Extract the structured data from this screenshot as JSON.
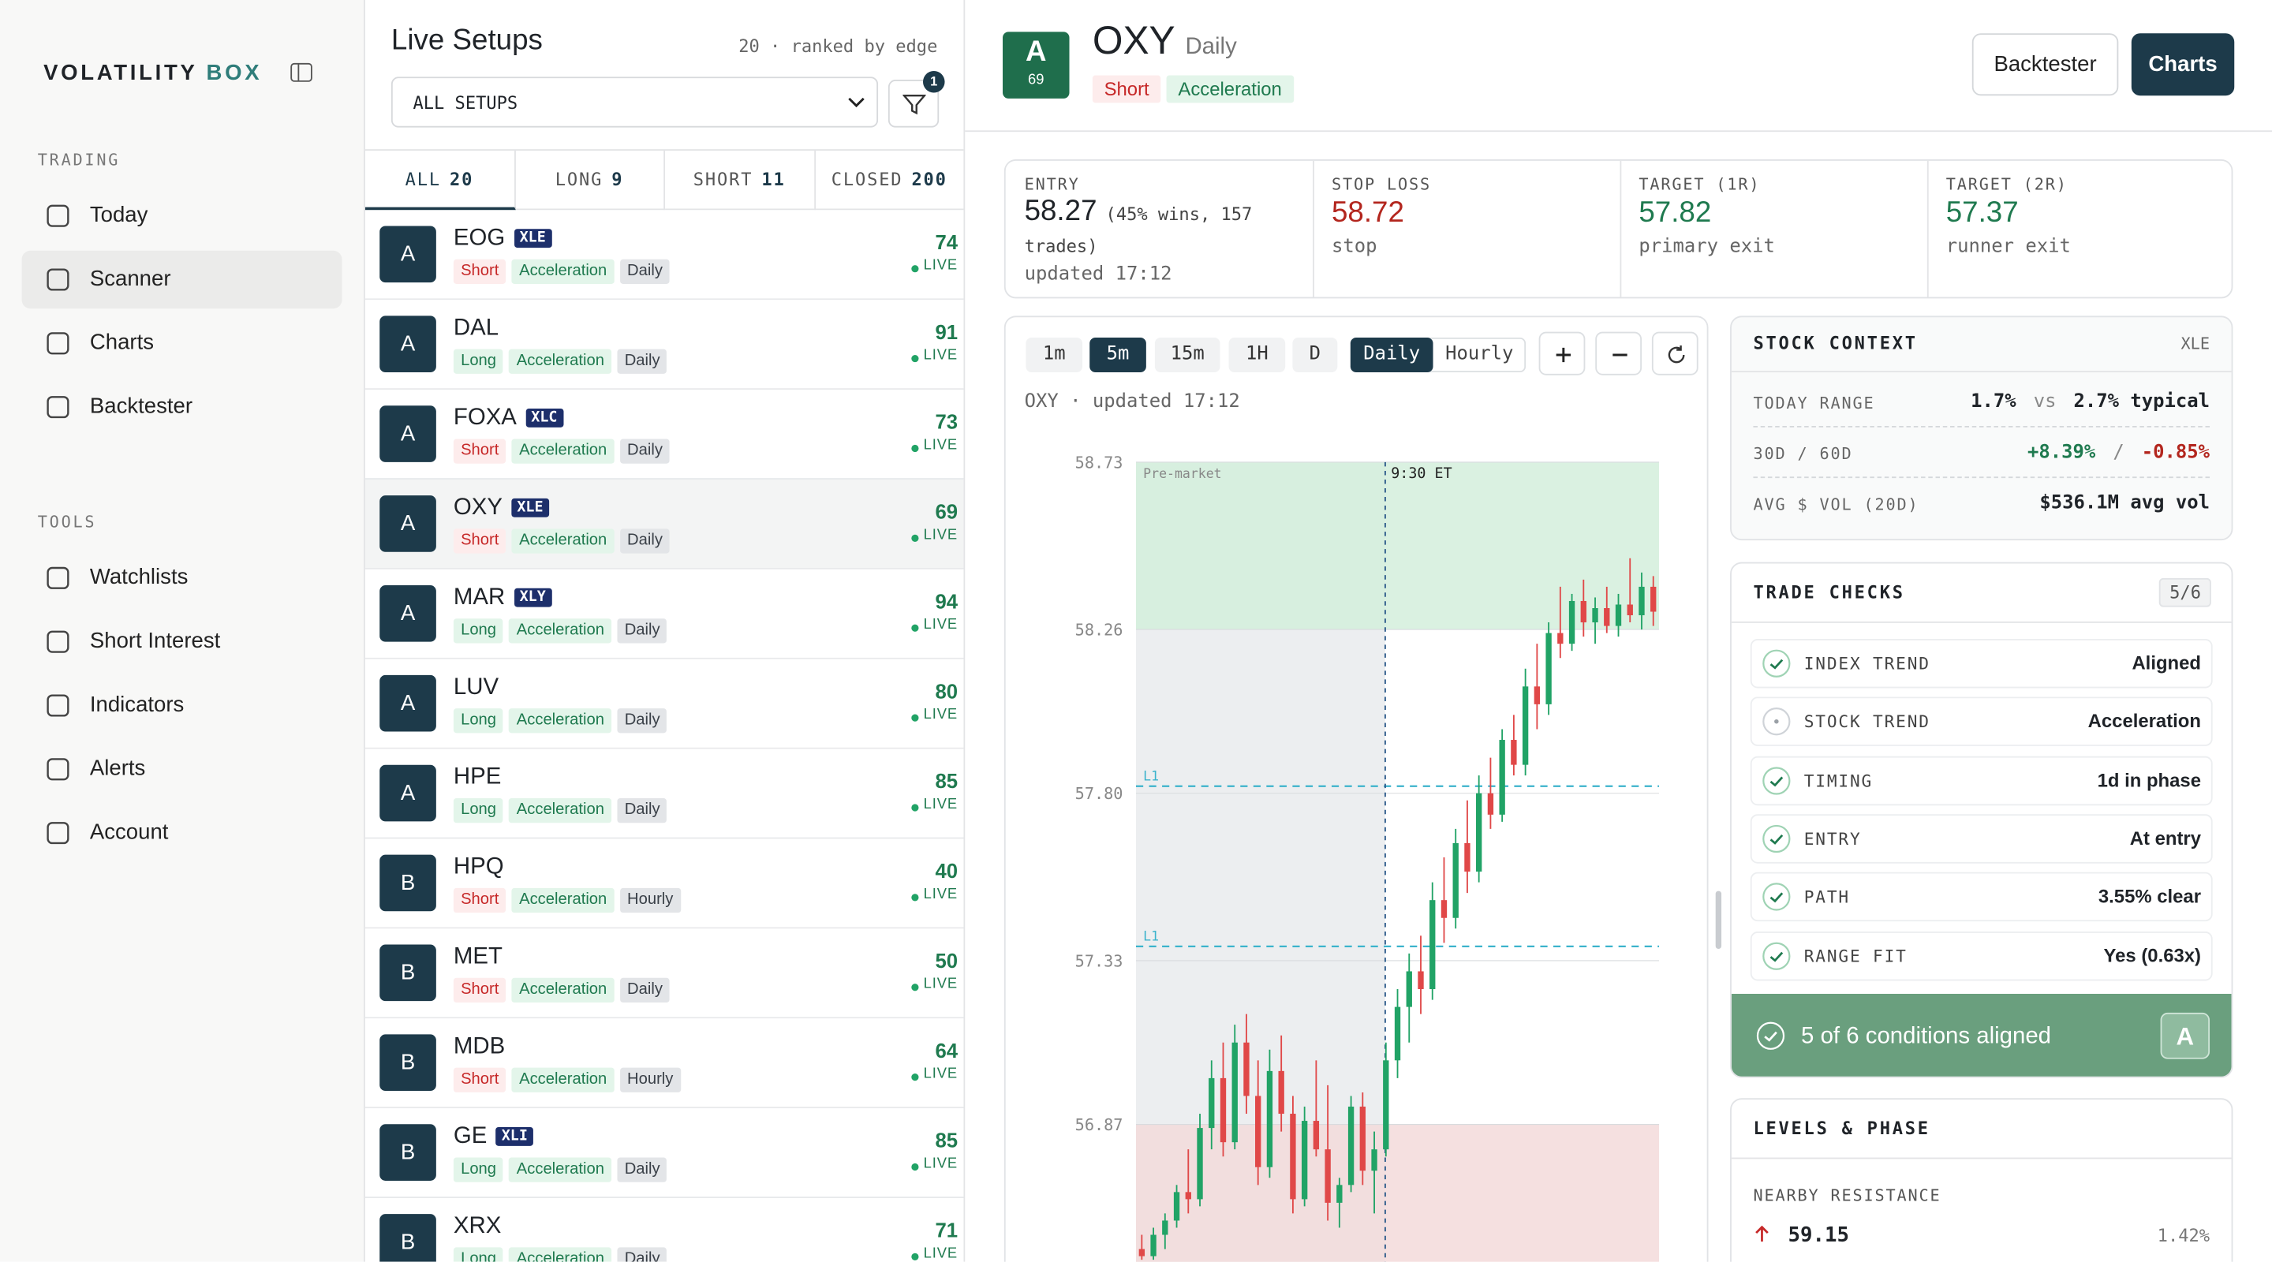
{
  "sidebar": {
    "brand": [
      "VOLATILITY",
      "BOX"
    ],
    "sections": [
      {
        "title": "TRADING",
        "items": [
          {
            "label": "Today"
          },
          {
            "label": "Scanner",
            "active": true
          },
          {
            "label": "Charts"
          },
          {
            "label": "Backtester"
          }
        ]
      },
      {
        "title": "TOOLS",
        "items": [
          {
            "label": "Watchlists"
          },
          {
            "label": "Short Interest"
          },
          {
            "label": "Indicators"
          },
          {
            "label": "Alerts"
          },
          {
            "label": "Account"
          }
        ]
      }
    ]
  },
  "setups": {
    "title": "Live Setups",
    "subtitle": "20 · ranked by edge",
    "filter": "ALL SETUPS",
    "filter_badge": 1,
    "tabs": [
      {
        "label": "ALL",
        "count": 20,
        "active": true
      },
      {
        "label": "LONG",
        "count": 9
      },
      {
        "label": "SHORT",
        "count": 11
      },
      {
        "label": "CLOSED",
        "count": 200
      }
    ],
    "status": "LIVE",
    "rows": [
      {
        "grade": "A",
        "ticker": "EOG",
        "etf": "XLE",
        "side": "Short",
        "side_color": "red",
        "pattern": "Acceleration",
        "tf": "Daily",
        "score": 74
      },
      {
        "grade": "A",
        "ticker": "DAL",
        "side": "Long",
        "side_color": "green",
        "pattern": "Acceleration",
        "tf": "Daily",
        "score": 91
      },
      {
        "grade": "A",
        "ticker": "FOXA",
        "etf": "XLC",
        "side": "Short",
        "side_color": "red",
        "pattern": "Acceleration",
        "tf": "Daily",
        "score": 73
      },
      {
        "grade": "A",
        "ticker": "OXY",
        "etf": "XLE",
        "side": "Short",
        "side_color": "red",
        "pattern": "Acceleration",
        "tf": "Daily",
        "score": 69,
        "selected": true
      },
      {
        "grade": "A",
        "ticker": "MAR",
        "etf": "XLY",
        "side": "Long",
        "side_color": "green",
        "pattern": "Acceleration",
        "tf": "Daily",
        "score": 94
      },
      {
        "grade": "A",
        "ticker": "LUV",
        "side": "Long",
        "side_color": "green",
        "pattern": "Acceleration",
        "tf": "Daily",
        "score": 80
      },
      {
        "grade": "A",
        "ticker": "HPE",
        "side": "Long",
        "side_color": "green",
        "pattern": "Acceleration",
        "tf": "Daily",
        "score": 85
      },
      {
        "grade": "B",
        "ticker": "HPQ",
        "side": "Short",
        "side_color": "red",
        "pattern": "Acceleration",
        "tf": "Hourly",
        "score": 40
      },
      {
        "grade": "B",
        "ticker": "MET",
        "side": "Short",
        "side_color": "red",
        "pattern": "Acceleration",
        "tf": "Daily",
        "score": 50
      },
      {
        "grade": "B",
        "ticker": "MDB",
        "side": "Short",
        "side_color": "red",
        "pattern": "Acceleration",
        "tf": "Hourly",
        "score": 64
      },
      {
        "grade": "B",
        "ticker": "GE",
        "etf": "XLI",
        "side": "Long",
        "side_color": "green",
        "pattern": "Acceleration",
        "tf": "Daily",
        "score": 85
      },
      {
        "grade": "B",
        "ticker": "XRX",
        "side": "Long",
        "side_color": "green",
        "pattern": "Acceleration",
        "tf": "Daily",
        "score": 71
      }
    ]
  },
  "header": {
    "grade": "A",
    "grade_score": 69,
    "ticker": "OXY",
    "timeframe": "Daily",
    "side": "Short",
    "pattern": "Acceleration",
    "buttons": [
      "Backtester",
      "Charts"
    ]
  },
  "stats": [
    {
      "label": "ENTRY",
      "value": 58.27,
      "note": "(45% wins, 157 trades)",
      "sub": "updated 17:12",
      "color": "#1f2328"
    },
    {
      "label": "STOP LOSS",
      "value": 58.72,
      "sub": "stop",
      "color": "#b3261e"
    },
    {
      "label": "TARGET (1R)",
      "value": 57.82,
      "sub": "primary exit",
      "color": "#1f7a4f"
    },
    {
      "label": "TARGET (2R)",
      "value": 57.37,
      "sub": "runner exit",
      "color": "#1f7a4f"
    }
  ],
  "chart": {
    "type": "candlestick",
    "intervals": [
      "1m",
      "5m",
      "15m",
      "1H",
      "D"
    ],
    "active_interval": 1,
    "modes": [
      "Daily",
      "Hourly"
    ],
    "active_mode": 0,
    "caption": "OXY · updated 17:12",
    "premarket_label": "Pre-market",
    "open_label": "9:30 ET",
    "ylim": [
      56.48,
      58.73
    ],
    "yticks": [
      58.73,
      58.26,
      {
        "value": 57.8,
        "label": "57.80"
      },
      57.33,
      56.87
    ],
    "zones": [
      {
        "from": 58.26,
        "to": 58.73,
        "color": "#d3efdc"
      },
      {
        "from": 56.48,
        "to": 56.87,
        "color": "#f3dada"
      }
    ],
    "levels": [
      {
        "label": "L1",
        "value": 57.82
      },
      {
        "label": "L1",
        "value": 57.37
      }
    ],
    "up_color": "#21a366",
    "down_color": "#e04848",
    "candles": [
      [
        56.52,
        56.56,
        56.49,
        56.5
      ],
      [
        56.5,
        56.58,
        56.49,
        56.56
      ],
      [
        56.56,
        56.62,
        56.52,
        56.6
      ],
      [
        56.6,
        56.7,
        56.58,
        56.68
      ],
      [
        56.68,
        56.8,
        56.62,
        56.66
      ],
      [
        56.66,
        56.9,
        56.64,
        56.86
      ],
      [
        56.86,
        57.05,
        56.8,
        57.0
      ],
      [
        57.0,
        57.1,
        56.78,
        56.82
      ],
      [
        56.82,
        57.15,
        56.8,
        57.1
      ],
      [
        57.1,
        57.18,
        56.9,
        56.95
      ],
      [
        56.95,
        57.05,
        56.7,
        56.75
      ],
      [
        56.75,
        57.08,
        56.72,
        57.02
      ],
      [
        57.02,
        57.12,
        56.85,
        56.9
      ],
      [
        56.9,
        56.95,
        56.62,
        56.66
      ],
      [
        56.66,
        56.92,
        56.64,
        56.88
      ],
      [
        56.88,
        57.05,
        56.78,
        56.8
      ],
      [
        56.8,
        56.98,
        56.6,
        56.65
      ],
      [
        56.65,
        56.72,
        56.58,
        56.7
      ],
      [
        56.7,
        56.95,
        56.68,
        56.92
      ],
      [
        56.92,
        56.96,
        56.7,
        56.74
      ],
      [
        56.74,
        56.85,
        56.62,
        56.8
      ],
      [
        56.8,
        57.1,
        56.78,
        57.05
      ],
      [
        57.05,
        57.25,
        57.0,
        57.2
      ],
      [
        57.2,
        57.35,
        57.1,
        57.3
      ],
      [
        57.3,
        57.4,
        57.18,
        57.25
      ],
      [
        57.25,
        57.55,
        57.22,
        57.5
      ],
      [
        57.5,
        57.62,
        57.38,
        57.45
      ],
      [
        57.45,
        57.7,
        57.42,
        57.66
      ],
      [
        57.66,
        57.78,
        57.52,
        57.58
      ],
      [
        57.58,
        57.85,
        57.55,
        57.8
      ],
      [
        57.8,
        57.9,
        57.7,
        57.74
      ],
      [
        57.74,
        57.98,
        57.72,
        57.95
      ],
      [
        57.95,
        58.02,
        57.85,
        57.88
      ],
      [
        57.88,
        58.15,
        57.85,
        58.1
      ],
      [
        58.1,
        58.22,
        57.98,
        58.05
      ],
      [
        58.05,
        58.28,
        58.02,
        58.25
      ],
      [
        58.25,
        58.38,
        58.18,
        58.22
      ],
      [
        58.22,
        58.36,
        58.2,
        58.34
      ],
      [
        58.34,
        58.4,
        58.24,
        58.28
      ],
      [
        58.28,
        58.35,
        58.22,
        58.32
      ],
      [
        58.32,
        58.38,
        58.25,
        58.27
      ],
      [
        58.27,
        58.36,
        58.24,
        58.33
      ],
      [
        58.33,
        58.46,
        58.28,
        58.3
      ],
      [
        58.3,
        58.42,
        58.26,
        58.38
      ],
      [
        58.38,
        58.41,
        58.27,
        58.31
      ]
    ]
  },
  "context": {
    "title": "STOCK CONTEXT",
    "tag": "XLE",
    "rows": [
      {
        "label": "TODAY RANGE",
        "parts": [
          {
            "text": "1.7%"
          },
          {
            "text": "vs",
            "muted": true
          },
          {
            "text": "2.7% typical"
          }
        ]
      },
      {
        "label": "30D / 60D",
        "parts": [
          {
            "text": "+8.39%",
            "color": "#1f7a4f"
          },
          {
            "text": "/",
            "muted": true
          },
          {
            "text": "-0.85%",
            "color": "#b3261e"
          }
        ]
      },
      {
        "label": "AVG $ VOL (20D)",
        "parts": [
          {
            "text": "$536.1M avg vol"
          }
        ]
      }
    ]
  },
  "checks": {
    "title": "TRADE CHECKS",
    "count": "5/6",
    "items": [
      {
        "label": "INDEX TREND",
        "value": "Aligned",
        "status": "ok"
      },
      {
        "label": "STOCK TREND",
        "value": "Acceleration",
        "status": "neutral"
      },
      {
        "label": "TIMING",
        "value": "1d in phase",
        "status": "ok"
      },
      {
        "label": "ENTRY",
        "value": "At entry",
        "status": "ok"
      },
      {
        "label": "PATH",
        "value": "3.55% clear",
        "status": "ok"
      },
      {
        "label": "RANGE FIT",
        "value": "Yes (0.63x)",
        "status": "ok"
      }
    ],
    "summary": "5 of 6 conditions aligned",
    "grade": "A"
  },
  "levels": {
    "title": "LEVELS & PHASE",
    "subtitle": "NEARBY RESISTANCE",
    "items": [
      {
        "price": 59.15,
        "distance": "1.42%"
      }
    ]
  }
}
